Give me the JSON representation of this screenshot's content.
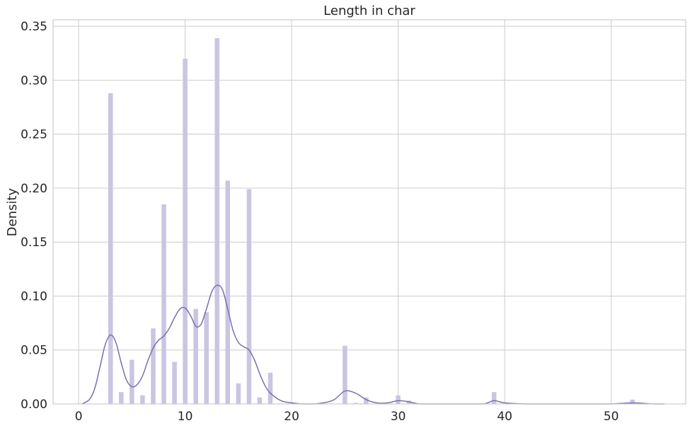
{
  "chart_data": {
    "type": "histogram",
    "title": "Length in char",
    "xlabel": "",
    "ylabel": "Density",
    "xlim": [
      -2.4,
      57
    ],
    "ylim": [
      0,
      0.356
    ],
    "grid": true,
    "xticks": [
      0,
      10,
      20,
      30,
      40,
      50
    ],
    "yticks": [
      0.0,
      0.05,
      0.1,
      0.15,
      0.2,
      0.25,
      0.3,
      0.35
    ],
    "colors": {
      "bars": "#c9c5e2",
      "kde": "#7b6fae",
      "grid": "#cccccc"
    },
    "bars": [
      {
        "x": 3,
        "value": 0.288
      },
      {
        "x": 4,
        "value": 0.011
      },
      {
        "x": 5,
        "value": 0.041
      },
      {
        "x": 6,
        "value": 0.008
      },
      {
        "x": 7,
        "value": 0.07
      },
      {
        "x": 8,
        "value": 0.185
      },
      {
        "x": 9,
        "value": 0.039
      },
      {
        "x": 10,
        "value": 0.32
      },
      {
        "x": 11,
        "value": 0.088
      },
      {
        "x": 12,
        "value": 0.085
      },
      {
        "x": 13,
        "value": 0.339
      },
      {
        "x": 14,
        "value": 0.207
      },
      {
        "x": 15,
        "value": 0.019
      },
      {
        "x": 16,
        "value": 0.199
      },
      {
        "x": 17,
        "value": 0.006
      },
      {
        "x": 18,
        "value": 0.029
      },
      {
        "x": 25,
        "value": 0.054
      },
      {
        "x": 26,
        "value": 0.001
      },
      {
        "x": 27,
        "value": 0.006
      },
      {
        "x": 30,
        "value": 0.008
      },
      {
        "x": 31,
        "value": 0.003
      },
      {
        "x": 39,
        "value": 0.011
      },
      {
        "x": 52,
        "value": 0.004
      }
    ],
    "kde": {
      "x": [
        0.3,
        1,
        1.5,
        2,
        2.5,
        3,
        3.5,
        4,
        4.5,
        5,
        5.5,
        6,
        6.5,
        7,
        7.5,
        8,
        8.5,
        9,
        9.5,
        10,
        10.5,
        11,
        11.5,
        12,
        12.5,
        13,
        13.5,
        14,
        14.5,
        15,
        15.5,
        16,
        16.5,
        17,
        17.5,
        18,
        19,
        20,
        21,
        22,
        23,
        24,
        25,
        26,
        27,
        28,
        29,
        30,
        31,
        32,
        34,
        36,
        38,
        39,
        40,
        42,
        45,
        48,
        50,
        52,
        54,
        55
      ],
      "y": [
        0.0,
        0.004,
        0.014,
        0.034,
        0.055,
        0.064,
        0.057,
        0.038,
        0.022,
        0.016,
        0.018,
        0.026,
        0.04,
        0.052,
        0.059,
        0.063,
        0.07,
        0.08,
        0.088,
        0.089,
        0.082,
        0.072,
        0.074,
        0.088,
        0.104,
        0.11,
        0.106,
        0.088,
        0.068,
        0.057,
        0.053,
        0.05,
        0.041,
        0.028,
        0.017,
        0.01,
        0.003,
        0.001,
        0.0,
        0.0,
        0.001,
        0.004,
        0.012,
        0.01,
        0.004,
        0.001,
        0.001,
        0.003,
        0.002,
        0.0,
        0.0,
        0.0,
        0.0,
        0.003,
        0.001,
        0.0,
        0.0,
        0.0,
        0.0,
        0.001,
        0.0,
        0.0
      ]
    }
  }
}
